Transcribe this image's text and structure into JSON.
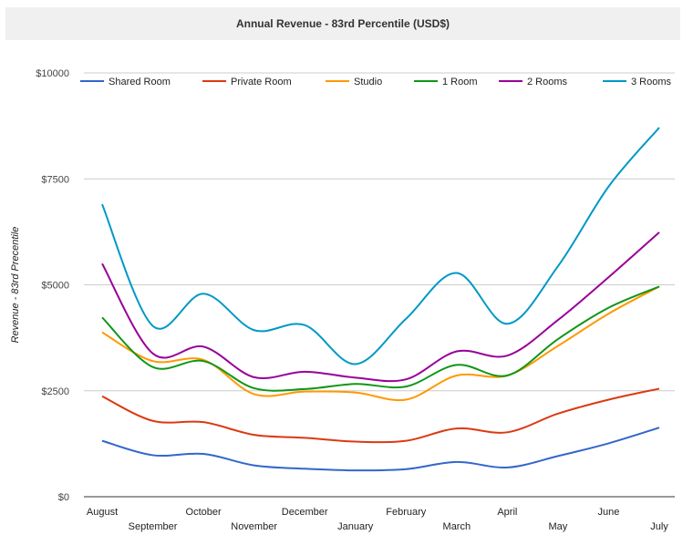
{
  "chart_data": {
    "type": "line",
    "title": "Annual Revenue - 83rd Percentile (USD$)",
    "xlabel": "",
    "ylabel": "Revenue - 83rd Precentile",
    "ylim": [
      0,
      10000
    ],
    "yticks": [
      {
        "value": 0,
        "label": "$0"
      },
      {
        "value": 2500,
        "label": "$2500"
      },
      {
        "value": 5000,
        "label": "$5000"
      },
      {
        "value": 7500,
        "label": "$7500"
      },
      {
        "value": 10000,
        "label": "$10000"
      }
    ],
    "grid": true,
    "legend_position": "top",
    "x": [
      "August",
      "September",
      "October",
      "November",
      "December",
      "January",
      "February",
      "March",
      "April",
      "May",
      "June",
      "July"
    ],
    "series": [
      {
        "name": "Shared Room",
        "color": "#3366cc",
        "values": [
          1320,
          980,
          1010,
          740,
          660,
          620,
          650,
          820,
          690,
          960,
          1260,
          1630
        ]
      },
      {
        "name": "Private Room",
        "color": "#dc3912",
        "values": [
          2370,
          1790,
          1760,
          1460,
          1390,
          1300,
          1320,
          1610,
          1520,
          1960,
          2290,
          2550
        ]
      },
      {
        "name": "Studio",
        "color": "#ff9900",
        "values": [
          3880,
          3200,
          3230,
          2420,
          2480,
          2460,
          2290,
          2860,
          2860,
          3560,
          4320,
          4960
        ]
      },
      {
        "name": "1 Room",
        "color": "#109618",
        "values": [
          4230,
          3060,
          3200,
          2560,
          2540,
          2660,
          2600,
          3110,
          2860,
          3720,
          4460,
          4960
        ]
      },
      {
        "name": "2 Rooms",
        "color": "#990099",
        "values": [
          5500,
          3380,
          3540,
          2820,
          2950,
          2810,
          2770,
          3430,
          3330,
          4170,
          5180,
          6240
        ]
      },
      {
        "name": "3 Rooms",
        "color": "#0099c6",
        "values": [
          6900,
          4030,
          4790,
          3930,
          4050,
          3130,
          4200,
          5280,
          4080,
          5440,
          7320,
          8710
        ]
      }
    ]
  }
}
